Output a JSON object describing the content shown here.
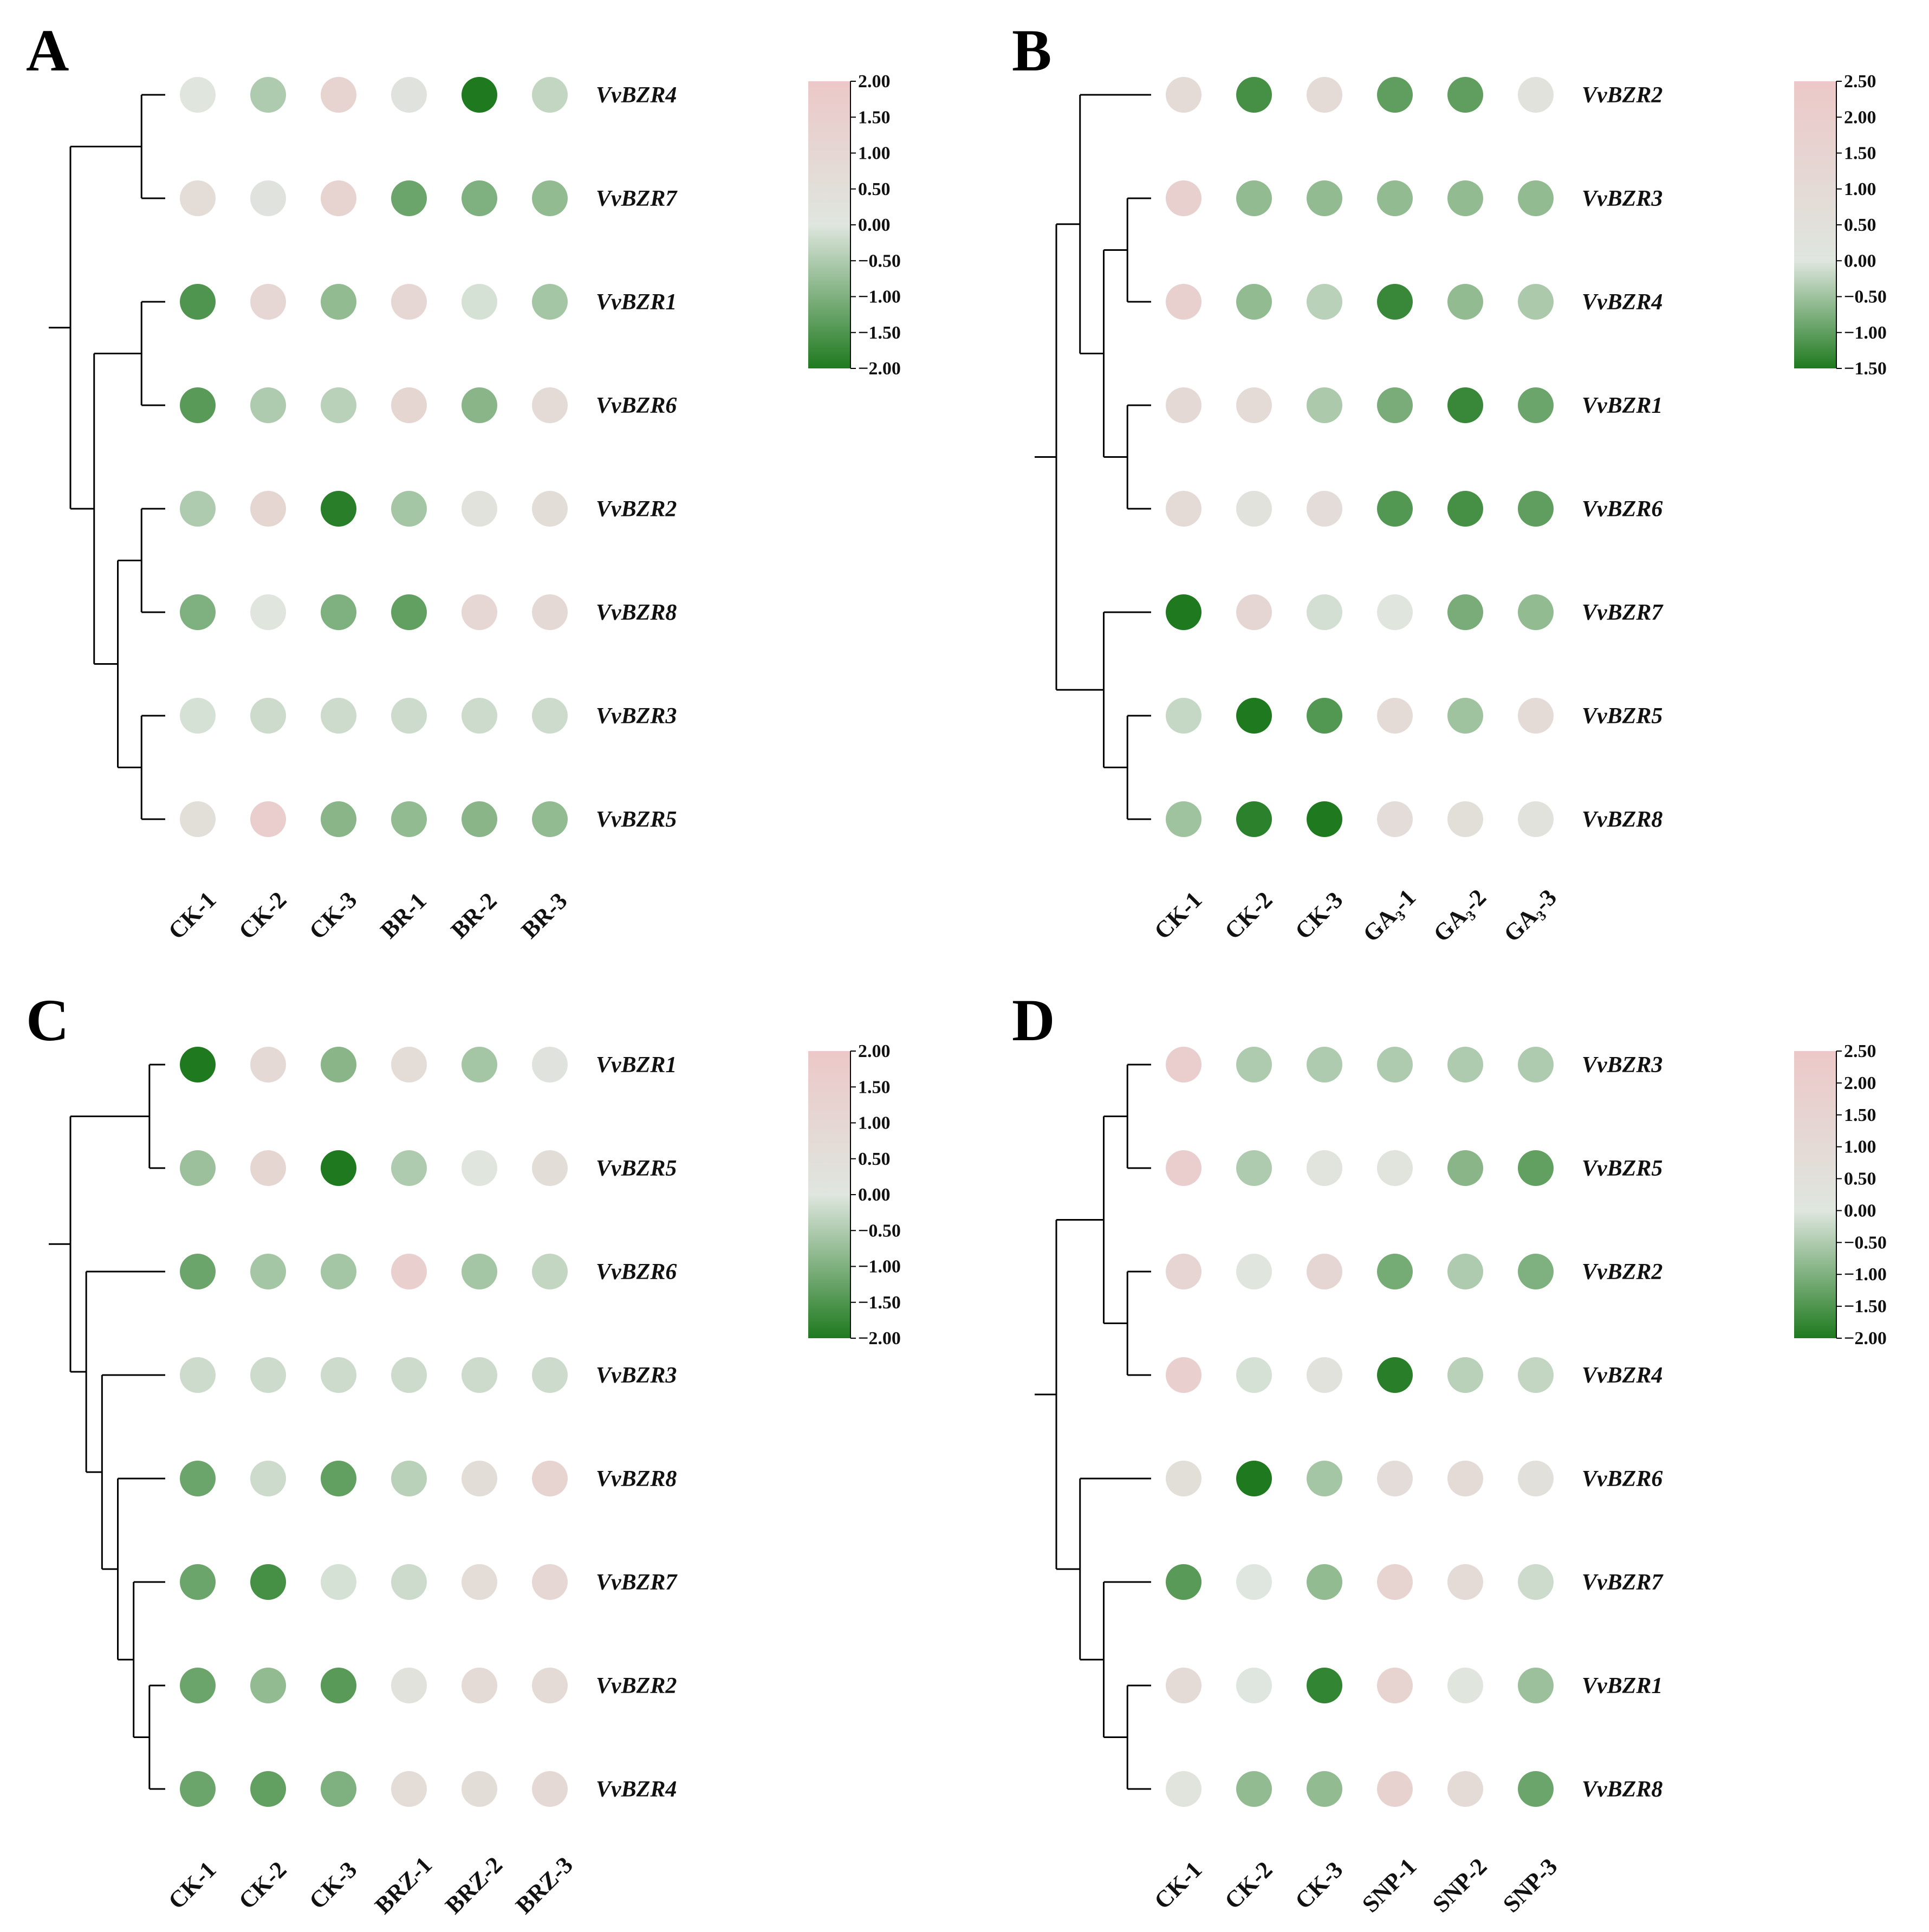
{
  "figure": {
    "panels": [
      "A",
      "B",
      "C",
      "D"
    ]
  },
  "colors": {
    "low": "#1f7a1f",
    "mid": "#dfe6df",
    "high": "#ecc8c8",
    "tree": "#000000",
    "text": "#111111"
  },
  "chart_data": [
    {
      "panel": "A",
      "type": "heatmap",
      "title": "",
      "rows": [
        "VvBZR4",
        "VvBZR7",
        "VvBZR1",
        "VvBZR6",
        "VvBZR2",
        "VvBZR8",
        "VvBZR3",
        "VvBZR5"
      ],
      "columns": [
        "CK-1",
        "CK-2",
        "CK-3",
        "BR-1",
        "BR-2",
        "BR-3"
      ],
      "values": [
        [
          0.1,
          -0.5,
          1.2,
          0.2,
          -2.0,
          -0.3
        ],
        [
          0.7,
          0.2,
          1.3,
          -1.2,
          -1.0,
          -0.8
        ],
        [
          -1.5,
          1.0,
          -0.8,
          1.0,
          -0.1,
          -0.6
        ],
        [
          -1.4,
          -0.5,
          -0.4,
          1.1,
          -0.9,
          0.8
        ],
        [
          -0.5,
          1.1,
          -1.9,
          -0.6,
          0.3,
          0.6
        ],
        [
          -1.0,
          0.1,
          -1.0,
          -1.3,
          1.0,
          0.9
        ],
        [
          -0.1,
          -0.2,
          -0.2,
          -0.2,
          -0.2,
          -0.2
        ],
        [
          0.5,
          1.6,
          -0.9,
          -0.8,
          -0.9,
          -0.8
        ]
      ],
      "colorbar": {
        "min": -2.0,
        "max": 2.0,
        "ticks": [
          "2.00",
          "1.50",
          "1.00",
          "0.50",
          "0.00",
          "−0.50",
          "−1.00",
          "−1.50",
          "−2.00"
        ]
      },
      "dendrogram": "((VvBZR4,VvBZR7),((VvBZR1,VvBZR6),((VvBZR2,VvBZR8),(VvBZR3,VvBZR5))))"
    },
    {
      "panel": "B",
      "type": "heatmap",
      "title": "",
      "rows": [
        "VvBZR2",
        "VvBZR3",
        "VvBZR4",
        "VvBZR1",
        "VvBZR6",
        "VvBZR7",
        "VvBZR5",
        "VvBZR8"
      ],
      "columns": [
        "CK-1",
        "CK-2",
        "CK-3",
        "GA₃-1",
        "GA₃-2",
        "GA₃-3"
      ],
      "values": [
        [
          1.0,
          -1.2,
          1.0,
          -1.0,
          -1.0,
          0.3
        ],
        [
          1.8,
          -0.6,
          -0.6,
          -0.6,
          -0.6,
          -0.6
        ],
        [
          1.8,
          -0.6,
          -0.3,
          -1.3,
          -0.6,
          -0.4
        ],
        [
          1.1,
          0.9,
          -0.4,
          -0.8,
          -1.3,
          -0.9
        ],
        [
          1.0,
          0.3,
          0.8,
          -1.1,
          -1.2,
          -1.0
        ],
        [
          -1.5,
          1.3,
          -0.1,
          0.1,
          -0.8,
          -0.6
        ],
        [
          -0.2,
          -1.5,
          -1.1,
          0.9,
          -0.5,
          0.9
        ],
        [
          -0.5,
          -1.4,
          -1.5,
          0.8,
          0.6,
          0.3
        ]
      ],
      "colorbar": {
        "min": -1.5,
        "max": 2.5,
        "ticks": [
          "2.50",
          "2.00",
          "1.50",
          "1.00",
          "0.50",
          "0.00",
          "−0.50",
          "−1.00",
          "−1.50"
        ]
      },
      "dendrogram": "((VvBZR2,((VvBZR3,VvBZR4),(VvBZR1,VvBZR6))),(VvBZR7,(VvBZR5,VvBZR8)))"
    },
    {
      "panel": "C",
      "type": "heatmap",
      "title": "",
      "rows": [
        "VvBZR1",
        "VvBZR5",
        "VvBZR6",
        "VvBZR3",
        "VvBZR8",
        "VvBZR7",
        "VvBZR2",
        "VvBZR4"
      ],
      "columns": [
        "CK-1",
        "CK-2",
        "CK-3",
        "BRZ-1",
        "BRZ-2",
        "BRZ-3"
      ],
      "values": [
        [
          -2.0,
          0.9,
          -0.9,
          0.7,
          -0.6,
          0.2
        ],
        [
          -0.7,
          1.1,
          -2.0,
          -0.5,
          0.1,
          0.6
        ],
        [
          -1.2,
          -0.6,
          -0.6,
          1.5,
          -0.6,
          -0.3
        ],
        [
          -0.2,
          -0.2,
          -0.2,
          -0.2,
          -0.2,
          -0.2
        ],
        [
          -1.2,
          -0.2,
          -1.3,
          -0.4,
          0.6,
          1.2
        ],
        [
          -1.2,
          -1.6,
          -0.1,
          -0.2,
          0.7,
          1.0
        ],
        [
          -1.2,
          -0.8,
          -1.4,
          0.3,
          0.8,
          0.8
        ],
        [
          -1.2,
          -1.3,
          -1.0,
          0.7,
          0.6,
          0.9
        ]
      ],
      "colorbar": {
        "min": -2.0,
        "max": 2.0,
        "ticks": [
          "2.00",
          "1.50",
          "1.00",
          "0.50",
          "0.00",
          "−0.50",
          "−1.00",
          "−1.50",
          "−2.00"
        ]
      },
      "dendrogram": "((VvBZR1,VvBZR5),(VvBZR6,(VvBZR3,(VvBZR8,(VvBZR7,(VvBZR2,VvBZR4))))))"
    },
    {
      "panel": "D",
      "type": "heatmap",
      "title": "",
      "rows": [
        "VvBZR3",
        "VvBZR5",
        "VvBZR2",
        "VvBZR4",
        "VvBZR6",
        "VvBZR7",
        "VvBZR1",
        "VvBZR8"
      ],
      "columns": [
        "CK-1",
        "CK-2",
        "CK-3",
        "SNP-1",
        "SNP-2",
        "SNP-3"
      ],
      "values": [
        [
          2.0,
          -0.5,
          -0.5,
          -0.5,
          -0.5,
          -0.5
        ],
        [
          2.0,
          -0.5,
          0.2,
          0.2,
          -0.9,
          -1.3
        ],
        [
          1.4,
          0.1,
          1.3,
          -1.1,
          -0.5,
          -1.0
        ],
        [
          1.9,
          -0.1,
          0.3,
          -1.9,
          -0.4,
          -0.3
        ],
        [
          0.6,
          -2.0,
          -0.6,
          0.8,
          1.0,
          0.5
        ],
        [
          -1.4,
          0.0,
          -0.8,
          1.5,
          1.0,
          -0.2
        ],
        [
          1.0,
          0.0,
          -1.8,
          1.6,
          0.1,
          -0.7
        ],
        [
          0.2,
          -0.8,
          -0.8,
          1.7,
          1.0,
          -1.2
        ]
      ],
      "colorbar": {
        "min": -2.0,
        "max": 2.5,
        "ticks": [
          "2.50",
          "2.00",
          "1.50",
          "1.00",
          "0.50",
          "0.00",
          "−0.50",
          "−1.00",
          "−1.50",
          "−2.00"
        ]
      },
      "dendrogram": "(((VvBZR3,VvBZR5),(VvBZR2,VvBZR4)),(VvBZR6,(VvBZR7,(VvBZR1,VvBZR8))))"
    }
  ]
}
